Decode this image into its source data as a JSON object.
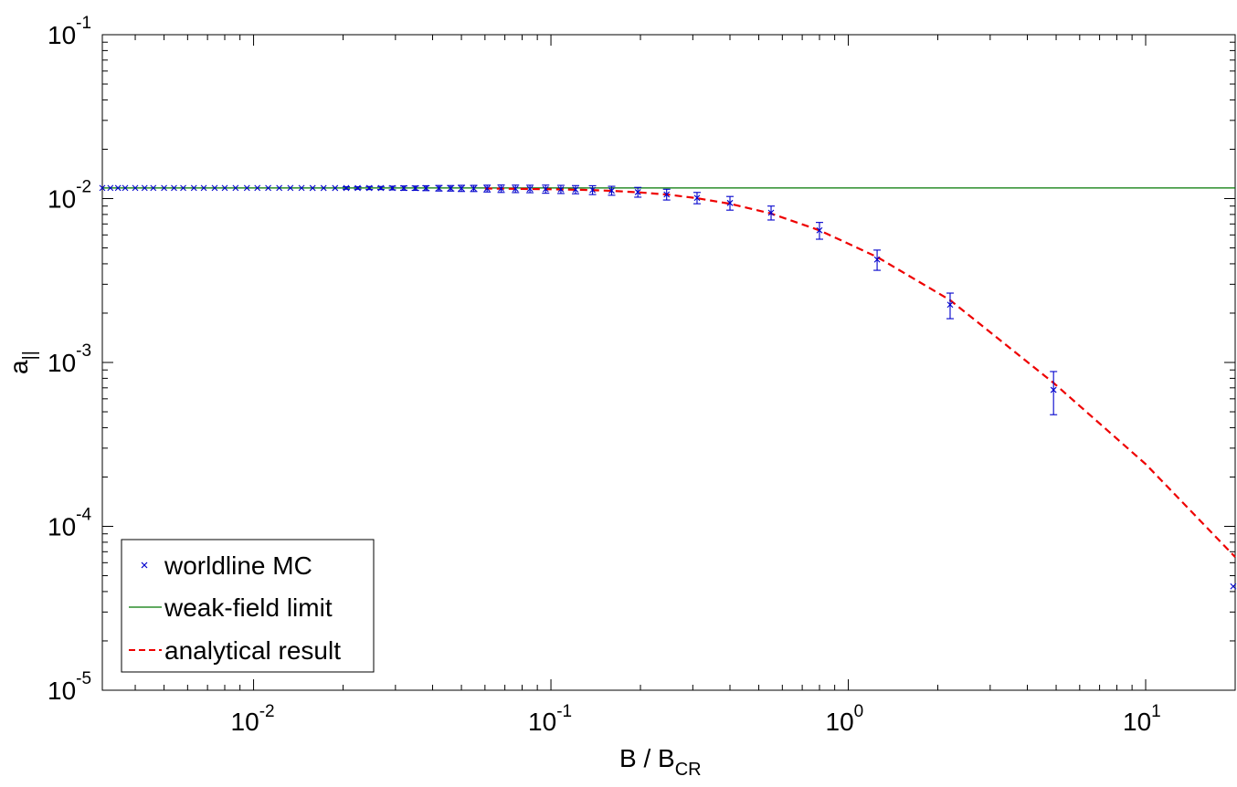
{
  "chart_data": {
    "type": "scatter",
    "x_scale": "log",
    "y_scale": "log",
    "xlim": [
      0.0031,
      20
    ],
    "ylim": [
      1e-05,
      0.1
    ],
    "grid": false,
    "legend_position": "bottom-left",
    "xlabel": {
      "main": "B / B",
      "sub": "CR"
    },
    "ylabel": {
      "main": "a",
      "sub": "||"
    },
    "x_ticks": [
      {
        "value": 0.01,
        "base": "10",
        "exp": "-2"
      },
      {
        "value": 0.1,
        "base": "10",
        "exp": "-1"
      },
      {
        "value": 1,
        "base": "10",
        "exp": "0"
      },
      {
        "value": 10,
        "base": "10",
        "exp": "1"
      }
    ],
    "y_ticks": [
      {
        "value": 0.1,
        "base": "10",
        "exp": "-1"
      },
      {
        "value": 0.01,
        "base": "10",
        "exp": "-2"
      },
      {
        "value": 0.001,
        "base": "10",
        "exp": "-3"
      },
      {
        "value": 0.0001,
        "base": "10",
        "exp": "-4"
      },
      {
        "value": 1e-05,
        "base": "10",
        "exp": "-5"
      }
    ],
    "series": [
      {
        "name": "worldline MC",
        "kind": "points-with-errorbars",
        "color": "#0000cc",
        "marker": "x",
        "points": [
          {
            "x": 0.0031,
            "y": 0.01161
          },
          {
            "x": 0.0033,
            "y": 0.01161
          },
          {
            "x": 0.0035,
            "y": 0.01161
          },
          {
            "x": 0.0037,
            "y": 0.01161
          },
          {
            "x": 0.004,
            "y": 0.01161
          },
          {
            "x": 0.0043,
            "y": 0.01161
          },
          {
            "x": 0.0046,
            "y": 0.01161
          },
          {
            "x": 0.005,
            "y": 0.01161
          },
          {
            "x": 0.0054,
            "y": 0.01161
          },
          {
            "x": 0.0058,
            "y": 0.01161
          },
          {
            "x": 0.0063,
            "y": 0.01161
          },
          {
            "x": 0.0068,
            "y": 0.01161
          },
          {
            "x": 0.0074,
            "y": 0.01161
          },
          {
            "x": 0.008,
            "y": 0.01161
          },
          {
            "x": 0.0087,
            "y": 0.01161
          },
          {
            "x": 0.0095,
            "y": 0.01161
          },
          {
            "x": 0.0103,
            "y": 0.01161
          },
          {
            "x": 0.0112,
            "y": 0.01161
          },
          {
            "x": 0.0122,
            "y": 0.01161
          },
          {
            "x": 0.0133,
            "y": 0.01161
          },
          {
            "x": 0.0145,
            "y": 0.01161
          },
          {
            "x": 0.0158,
            "y": 0.0116
          },
          {
            "x": 0.0172,
            "y": 0.0116
          },
          {
            "x": 0.0188,
            "y": 0.0116
          },
          {
            "x": 0.0205,
            "y": 0.0116,
            "err": 0.0002
          },
          {
            "x": 0.0224,
            "y": 0.0116,
            "err": 0.0002
          },
          {
            "x": 0.0245,
            "y": 0.0116,
            "err": 0.00025
          },
          {
            "x": 0.0268,
            "y": 0.0116,
            "err": 0.00025
          },
          {
            "x": 0.0293,
            "y": 0.0116,
            "err": 0.0003
          },
          {
            "x": 0.032,
            "y": 0.01159,
            "err": 0.00035
          },
          {
            "x": 0.035,
            "y": 0.01158,
            "err": 0.00035
          },
          {
            "x": 0.038,
            "y": 0.01158,
            "err": 0.0004
          },
          {
            "x": 0.042,
            "y": 0.01157,
            "err": 0.00045
          },
          {
            "x": 0.046,
            "y": 0.01156,
            "err": 0.00045
          },
          {
            "x": 0.05,
            "y": 0.01155,
            "err": 0.0005
          },
          {
            "x": 0.055,
            "y": 0.01154,
            "err": 0.0005
          },
          {
            "x": 0.061,
            "y": 0.01152,
            "err": 0.00055
          },
          {
            "x": 0.068,
            "y": 0.0115,
            "err": 0.0006
          },
          {
            "x": 0.076,
            "y": 0.01148,
            "err": 0.0006
          },
          {
            "x": 0.085,
            "y": 0.01146,
            "err": 0.0006
          },
          {
            "x": 0.096,
            "y": 0.01143,
            "err": 0.00065
          },
          {
            "x": 0.108,
            "y": 0.01139,
            "err": 0.00065
          },
          {
            "x": 0.121,
            "y": 0.01135,
            "err": 0.00065
          },
          {
            "x": 0.138,
            "y": 0.01128,
            "err": 0.0007
          },
          {
            "x": 0.16,
            "y": 0.01118,
            "err": 0.0007
          },
          {
            "x": 0.196,
            "y": 0.01095,
            "err": 0.00075
          },
          {
            "x": 0.245,
            "y": 0.0106,
            "err": 0.0008
          },
          {
            "x": 0.31,
            "y": 0.0101,
            "err": 0.0008
          },
          {
            "x": 0.4,
            "y": 0.0094,
            "err": 0.0009
          },
          {
            "x": 0.55,
            "y": 0.0082,
            "err": 0.0008
          },
          {
            "x": 0.8,
            "y": 0.0064,
            "err": 0.00075
          },
          {
            "x": 1.25,
            "y": 0.00425,
            "err": 0.0006
          },
          {
            "x": 2.2,
            "y": 0.00225,
            "err": 0.0004
          },
          {
            "x": 4.9,
            "y": 0.00068,
            "err": 0.0002
          },
          {
            "x": 19.7,
            "y": 4.3e-05
          }
        ]
      },
      {
        "name": "weak-field limit",
        "kind": "line",
        "color": "#007700",
        "dash": "solid",
        "points": [
          {
            "x": 0.0031,
            "y": 0.01161
          },
          {
            "x": 20,
            "y": 0.01161
          }
        ]
      },
      {
        "name": "analytical result",
        "kind": "line",
        "color": "#ee0000",
        "dash": "dashed",
        "points": [
          {
            "x": 0.06,
            "y": 0.01152
          },
          {
            "x": 0.08,
            "y": 0.01146
          },
          {
            "x": 0.1,
            "y": 0.0114
          },
          {
            "x": 0.13,
            "y": 0.0113
          },
          {
            "x": 0.16,
            "y": 0.01115
          },
          {
            "x": 0.2,
            "y": 0.0109
          },
          {
            "x": 0.25,
            "y": 0.01055
          },
          {
            "x": 0.31,
            "y": 0.01005
          },
          {
            "x": 0.4,
            "y": 0.0093
          },
          {
            "x": 0.55,
            "y": 0.0081
          },
          {
            "x": 0.8,
            "y": 0.0064
          },
          {
            "x": 1.25,
            "y": 0.0044
          },
          {
            "x": 2.2,
            "y": 0.0024
          },
          {
            "x": 4.9,
            "y": 0.00075
          },
          {
            "x": 10,
            "y": 0.00024
          },
          {
            "x": 20,
            "y": 6.5e-05
          }
        ]
      }
    ]
  }
}
